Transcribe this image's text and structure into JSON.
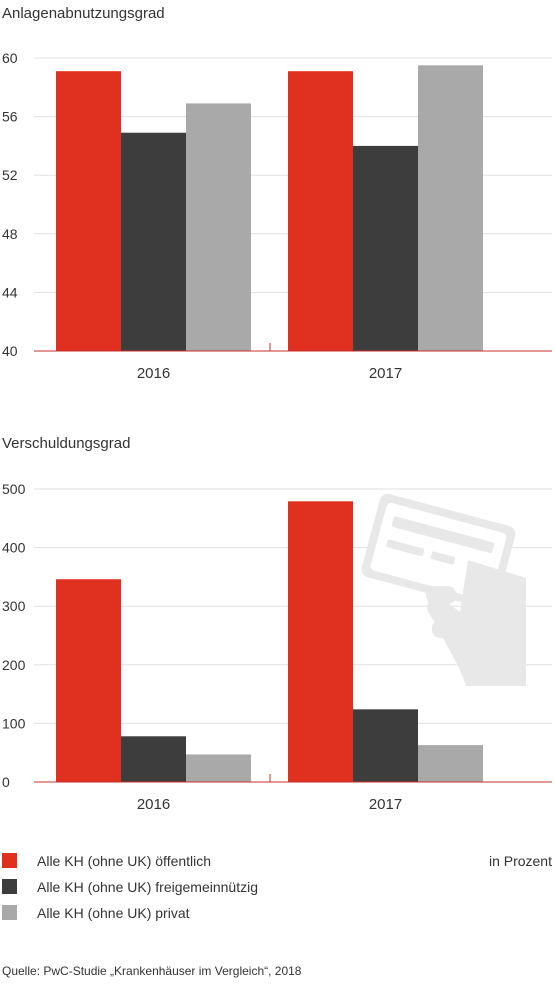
{
  "colors": {
    "series": [
      "#e03120",
      "#3d3d3d",
      "#a9a9a9"
    ],
    "axis": "#c9302c",
    "grid": "#e0e0e0",
    "icon": "#e8e8e8"
  },
  "legend": {
    "items": [
      "Alle KH (ohne UK) öffentlich",
      "Alle KH (ohne UK) freigemeinnützig",
      "Alle KH (ohne UK) privat"
    ],
    "unit": "in Prozent"
  },
  "source": "Quelle: PwC-Studie „Krankenhäuser im Vergleich“, 2018",
  "decor_icon": "credit-card-hand-icon",
  "chart_data": [
    {
      "type": "bar",
      "title": "Anlagenabnutzungsgrad",
      "categories": [
        "2016",
        "2017"
      ],
      "series": [
        {
          "name": "Alle KH (ohne UK) öffentlich",
          "values": [
            59.1,
            59.1
          ]
        },
        {
          "name": "Alle KH (ohne UK) freigemeinnützig",
          "values": [
            54.9,
            54.0
          ]
        },
        {
          "name": "Alle KH (ohne UK) privat",
          "values": [
            56.9,
            59.5
          ]
        }
      ],
      "ylim": [
        40,
        60
      ],
      "yticks": [
        40,
        44,
        48,
        52,
        56,
        60
      ],
      "grid": true
    },
    {
      "type": "bar",
      "title": "Verschuldungsgrad",
      "categories": [
        "2016",
        "2017"
      ],
      "series": [
        {
          "name": "Alle KH (ohne UK) öffentlich",
          "values": [
            346,
            479
          ]
        },
        {
          "name": "Alle KH (ohne UK) freigemeinnützig",
          "values": [
            78,
            124
          ]
        },
        {
          "name": "Alle KH (ohne UK) privat",
          "values": [
            47,
            63
          ]
        }
      ],
      "ylim": [
        0,
        500
      ],
      "yticks": [
        0,
        100,
        200,
        300,
        400,
        500
      ],
      "grid": true
    }
  ]
}
